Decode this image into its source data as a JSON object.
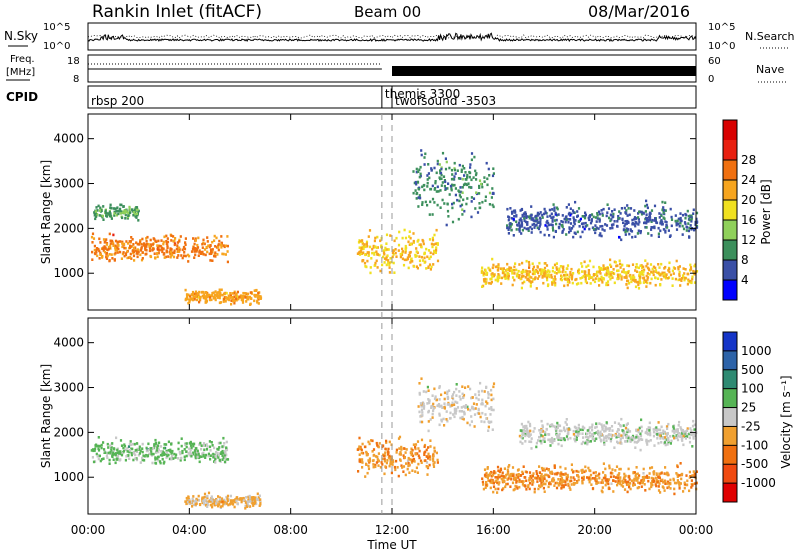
{
  "header": {
    "title": "Rankin Inlet (fitACF)",
    "beam": "Beam 00",
    "date": "08/Mar/2016"
  },
  "side_labels": {
    "nsky": "N.Sky",
    "nsearch": "N.Search",
    "freq_line1": "Freq.",
    "freq_line2": "[MHz]",
    "nave": "Nave",
    "cpid": "CPID"
  },
  "noise_panel": {
    "left_ticks": [
      "10^5",
      "10^0"
    ],
    "right_ticks": [
      "10^5",
      "10^0"
    ]
  },
  "freq_panel": {
    "left_ticks": [
      "18",
      "8"
    ],
    "right_ticks": [
      "60",
      "0"
    ]
  },
  "cpid_panel": {
    "segments": [
      {
        "label": "rbsp 200",
        "start": 0.0
      },
      {
        "label": "themis 3300",
        "start": 11.6
      },
      {
        "label": "twofsound -3503",
        "start": 12.0
      }
    ]
  },
  "axes": {
    "xlabel": "Time UT",
    "xticks": [
      "00:00",
      "04:00",
      "08:00",
      "12:00",
      "16:00",
      "20:00",
      "00:00"
    ],
    "ylabel": "Slant Range [km]",
    "yticks": [
      "1000",
      "2000",
      "3000",
      "4000"
    ]
  },
  "colorbars": {
    "power": {
      "label": "Power [dB]",
      "ticks": [
        "4",
        "8",
        "12",
        "16",
        "20",
        "24",
        "28"
      ],
      "colors": [
        "#0000ff",
        "#3a4fa6",
        "#3c8f5c",
        "#8fd05a",
        "#f0e020",
        "#f7a51f",
        "#f07010",
        "#e82010",
        "#d80000"
      ]
    },
    "velocity": {
      "label": "Velocity [m s⁻¹]",
      "ticks": [
        "1000",
        "500",
        "100",
        "25",
        "-25",
        "-100",
        "-500",
        "-1000"
      ],
      "colors": [
        "#1535c8",
        "#2d63a8",
        "#2e8a72",
        "#56b455",
        "#c8c8c8",
        "#f0a030",
        "#f07010",
        "#f04a10",
        "#e00000"
      ]
    }
  },
  "chart_data": [
    {
      "type": "heatmap",
      "title": "Power",
      "xlabel": "Time UT",
      "ylabel": "Slant Range [km]",
      "xlim": [
        0,
        24
      ],
      "ylim": [
        180,
        4550
      ],
      "color_scale_label": "Power [dB]",
      "color_scale_range": [
        0,
        32
      ],
      "scatter_regions": [
        {
          "t_start": 0.1,
          "t_end": 5.5,
          "range_center": 1600,
          "range_halfwidth": 380,
          "value": 22
        },
        {
          "t_start": 0.2,
          "t_end": 2.0,
          "range_center": 2400,
          "range_halfwidth": 250,
          "value": 10
        },
        {
          "t_start": 3.8,
          "t_end": 6.8,
          "range_center": 500,
          "range_halfwidth": 200,
          "value": 20
        },
        {
          "t_start": 10.6,
          "t_end": 13.8,
          "range_center": 1500,
          "range_halfwidth": 600,
          "value": 18
        },
        {
          "t_start": 12.8,
          "t_end": 16.0,
          "range_center": 3000,
          "range_halfwidth": 1000,
          "value": 8
        },
        {
          "t_start": 15.5,
          "t_end": 24.0,
          "range_center": 1000,
          "range_halfwidth": 400,
          "value": 18
        },
        {
          "t_start": 16.5,
          "t_end": 24.0,
          "range_center": 2200,
          "range_halfwidth": 500,
          "value": 6
        }
      ]
    },
    {
      "type": "heatmap",
      "title": "Velocity",
      "xlabel": "Time UT",
      "ylabel": "Slant Range [km]",
      "xlim": [
        0,
        24
      ],
      "ylim": [
        180,
        4550
      ],
      "color_scale_label": "Velocity [m s⁻¹]",
      "color_scale_range": [
        -1000,
        1000
      ],
      "scatter_regions": [
        {
          "t_start": 0.1,
          "t_end": 5.5,
          "range_center": 1600,
          "range_halfwidth": 380,
          "value": 150
        },
        {
          "t_start": 3.8,
          "t_end": 6.8,
          "range_center": 500,
          "range_halfwidth": 200,
          "value": -150
        },
        {
          "t_start": 10.6,
          "t_end": 13.8,
          "range_center": 1500,
          "range_halfwidth": 600,
          "value": -300
        },
        {
          "t_start": 13.0,
          "t_end": 16.0,
          "range_center": 2600,
          "range_halfwidth": 700,
          "value": -50
        },
        {
          "t_start": 15.5,
          "t_end": 24.0,
          "range_center": 1000,
          "range_halfwidth": 400,
          "value": -300
        },
        {
          "t_start": 17.0,
          "t_end": 24.0,
          "range_center": 2000,
          "range_halfwidth": 400,
          "value": 20
        }
      ]
    }
  ]
}
